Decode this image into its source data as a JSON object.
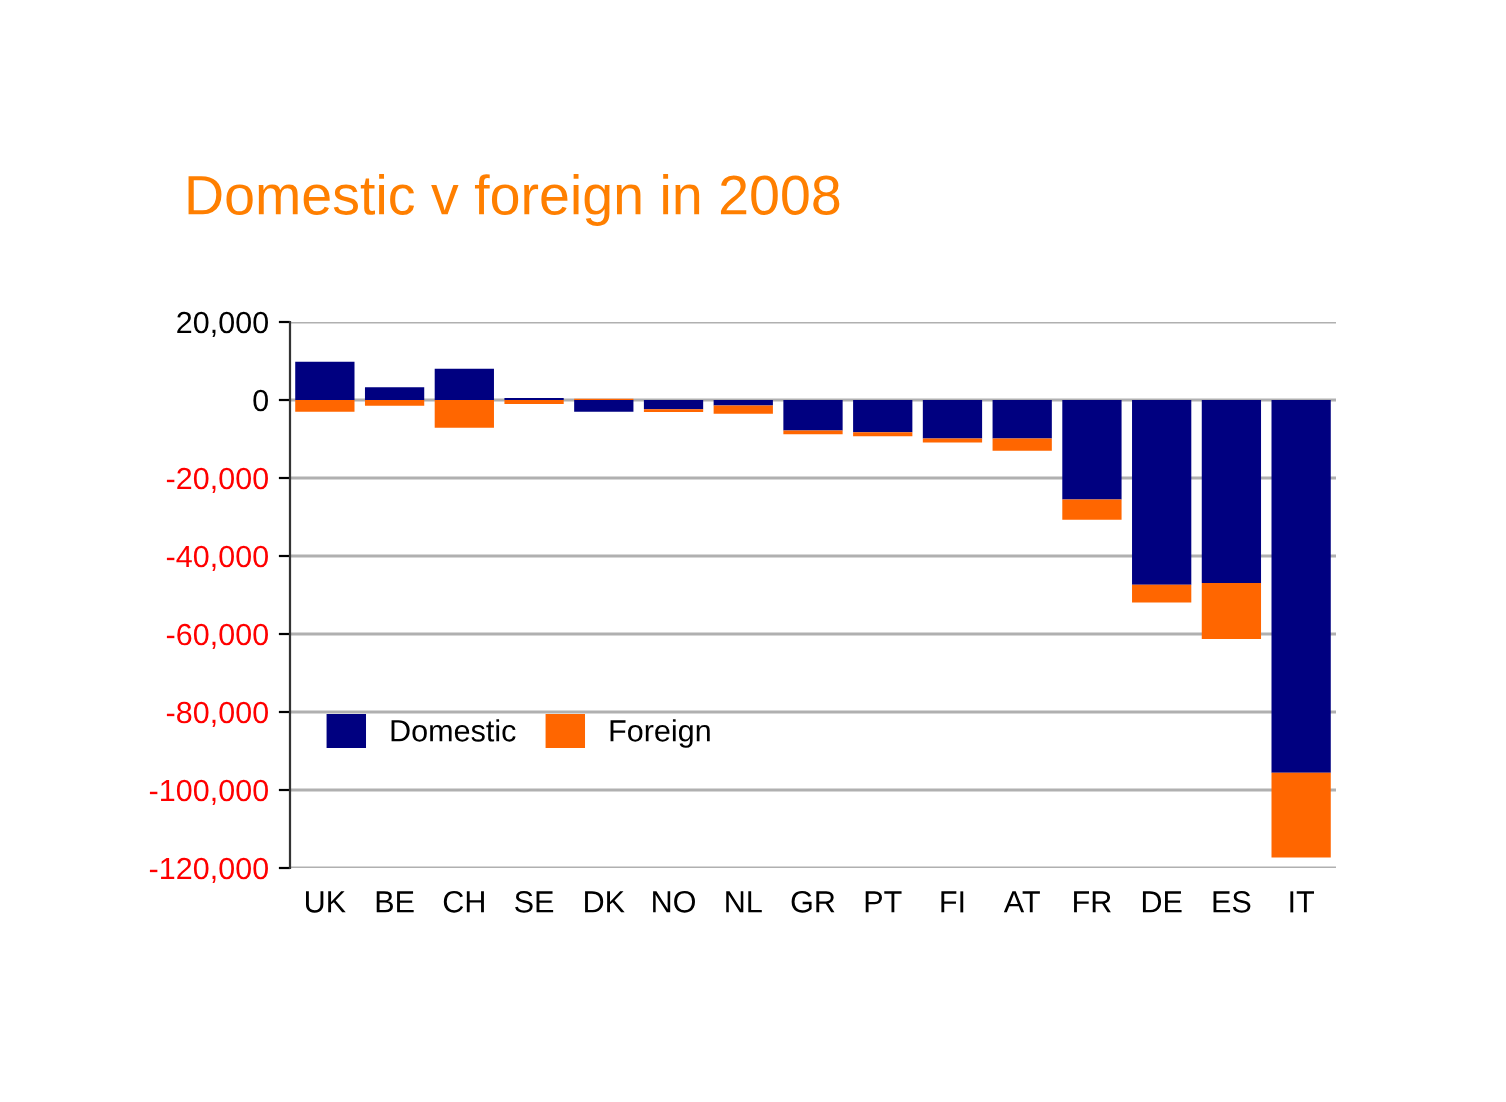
{
  "chart_data": {
    "type": "bar",
    "title": "Domestic v foreign in 2008",
    "stacked": true,
    "categories": [
      "UK",
      "BE",
      "CH",
      "SE",
      "DK",
      "NO",
      "NL",
      "GR",
      "PT",
      "FI",
      "AT",
      "FR",
      "DE",
      "ES",
      "IT"
    ],
    "series": [
      {
        "name": "Domestic",
        "color": "#000080",
        "values": [
          9800,
          3300,
          8000,
          500,
          -3000,
          -2400,
          -1400,
          -7800,
          -8300,
          -9900,
          -9900,
          -25500,
          -47400,
          -46900,
          -95600
        ]
      },
      {
        "name": "Foreign",
        "color": "#ff6600",
        "values": [
          -3000,
          -1500,
          -7100,
          -1000,
          300,
          -700,
          -2100,
          -1000,
          -1000,
          -1000,
          -3100,
          -5200,
          -4500,
          -14400,
          -21700
        ]
      }
    ],
    "ylim": [
      -120000,
      20000
    ],
    "yticks": [
      {
        "value": -120000,
        "label": "-120,000"
      },
      {
        "value": -100000,
        "label": "-100,000"
      },
      {
        "value": -80000,
        "label": "-80,000"
      },
      {
        "value": -60000,
        "label": "-60,000"
      },
      {
        "value": -40000,
        "label": "-40,000"
      },
      {
        "value": -20000,
        "label": "-20,000"
      },
      0,
      {
        "value": 20000,
        "label": "20,000"
      }
    ],
    "grid": "y",
    "legend": "bottom left"
  }
}
